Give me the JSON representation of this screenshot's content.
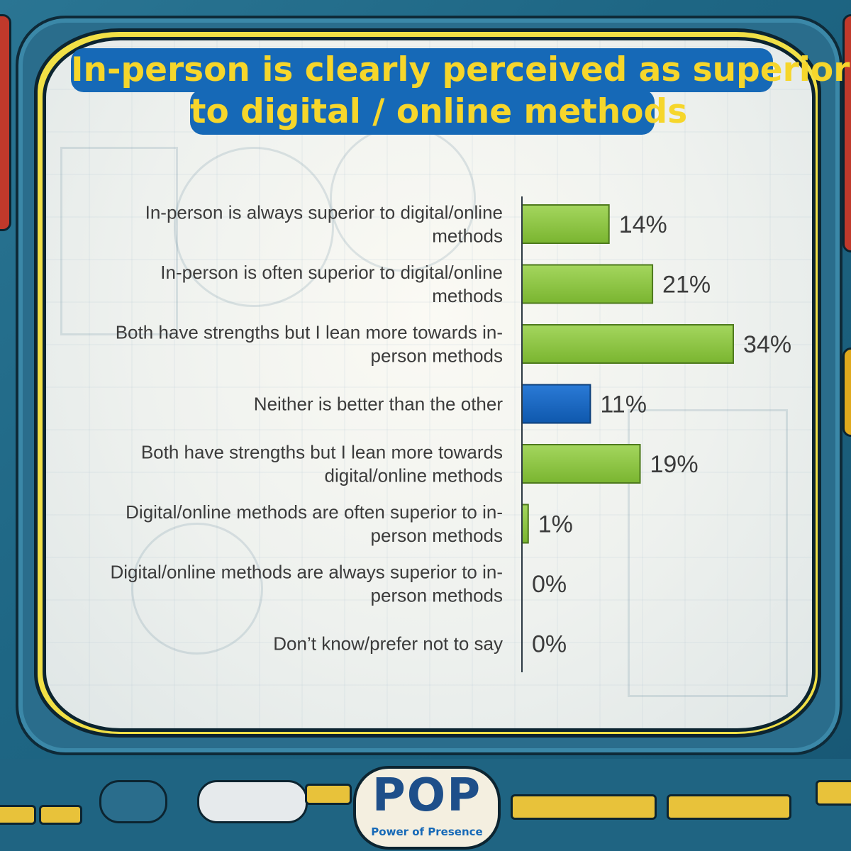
{
  "title": {
    "line1": "In-person is clearly perceived as superior",
    "line2": "to digital / online methods"
  },
  "colors": {
    "positive_bar": "#8cc63f",
    "neutral_bar": "#1565c0",
    "title_bg": "#1669b7",
    "title_text": "#f6d62b"
  },
  "chart_data": {
    "type": "bar",
    "orientation": "horizontal",
    "title": "In-person is clearly perceived as superior to digital / online methods",
    "categories": [
      [
        "In-person is always superior to digital/online",
        "methods"
      ],
      [
        "In-person is often superior to digital/online",
        "methods"
      ],
      [
        "Both have strengths but I lean more towards in-",
        "person methods"
      ],
      [
        "Neither is better than the other"
      ],
      [
        "Both have strengths but I lean more towards",
        "digital/online methods"
      ],
      [
        "Digital/online methods are often superior to in-",
        "person methods"
      ],
      [
        "Digital/online methods are always superior to in-",
        "person methods"
      ],
      [
        "Don’t know/prefer not to say"
      ]
    ],
    "values": [
      14,
      21,
      34,
      11,
      19,
      1,
      0,
      0
    ],
    "value_labels": [
      "14%",
      "21%",
      "34%",
      "11%",
      "19%",
      "1%",
      "0%",
      "0%"
    ],
    "bar_colors": [
      "green",
      "green",
      "green",
      "blue",
      "green",
      "green",
      "green",
      "green"
    ],
    "xlim": [
      0,
      34
    ],
    "grid": false,
    "legend": "none"
  },
  "logo": {
    "mark": "POP",
    "tagline": "Power of Presence"
  }
}
